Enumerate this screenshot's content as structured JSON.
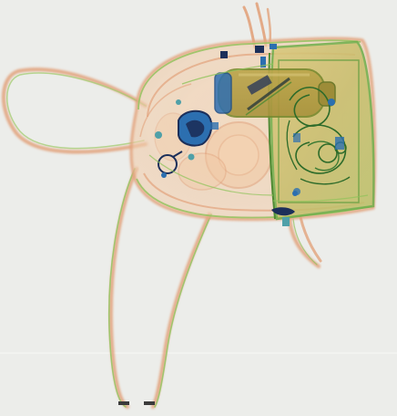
{
  "scan": {
    "background_color": "#ecedea",
    "organic_color": "#e2a27c",
    "mixed_color": "#8fc35a",
    "inorganic_color": "#2c6fb0",
    "dark_metal_color": "#1c2f5a",
    "shell_fill_color": "#c9d18a",
    "objects": [
      "backpack",
      "shoulder-straps",
      "bottle",
      "cable-bundle",
      "electronic-device",
      "key-ring",
      "zipper-pulls"
    ]
  }
}
